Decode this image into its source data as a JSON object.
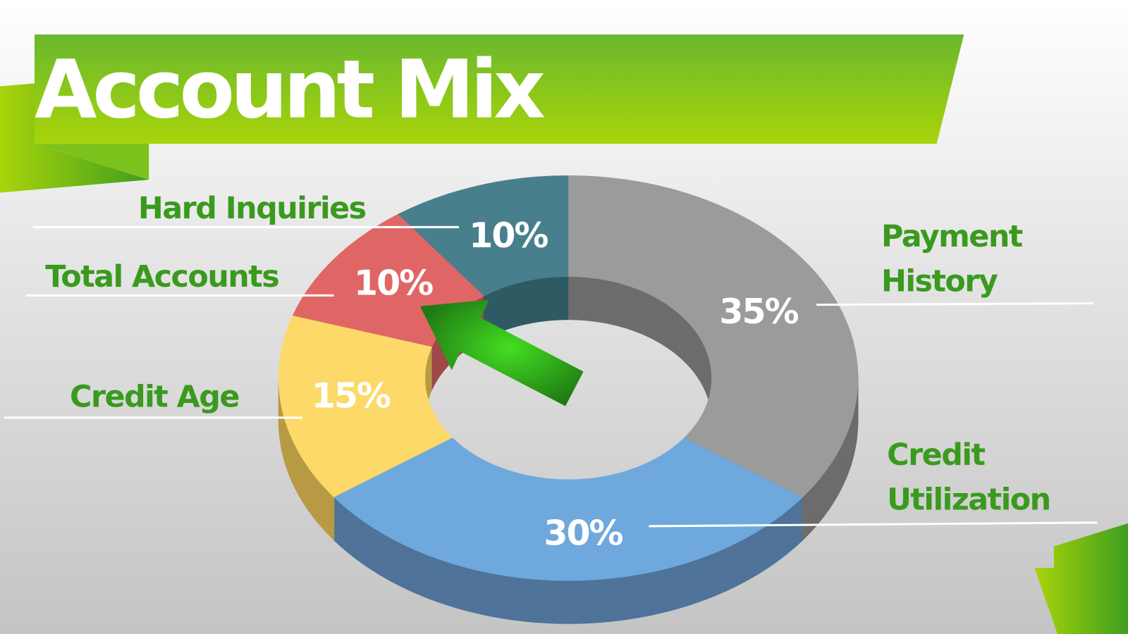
{
  "chart_data": {
    "type": "pie",
    "style": "3d-donut",
    "title": "Account Mix",
    "slices": [
      {
        "label": "Payment History",
        "value": 35,
        "display": "35%",
        "color": "#9b9b9b",
        "side_color": "#6c6c6c"
      },
      {
        "label": "Credit Utilization",
        "value": 30,
        "display": "30%",
        "color": "#6fa8dc",
        "side_color": "#4f7399"
      },
      {
        "label": "Credit Age",
        "value": 15,
        "display": "15%",
        "color": "#fcd968",
        "side_color": "#b89a45"
      },
      {
        "label": "Total Accounts",
        "value": 10,
        "display": "10%",
        "color": "#e06666",
        "side_color": "#9e4848"
      },
      {
        "label": "Hard Inquiries",
        "value": 10,
        "display": "10%",
        "color": "#487f8d",
        "side_color": "#2f5a64"
      }
    ],
    "highlighted": "Total Accounts",
    "label_color": "#3a9a1e",
    "banner_colors": [
      "#6ab82e",
      "#a8d40a"
    ]
  },
  "labels": {
    "payment_1": "Payment",
    "payment_2": "History",
    "utilization_1": "Credit",
    "utilization_2": "Utilization"
  }
}
